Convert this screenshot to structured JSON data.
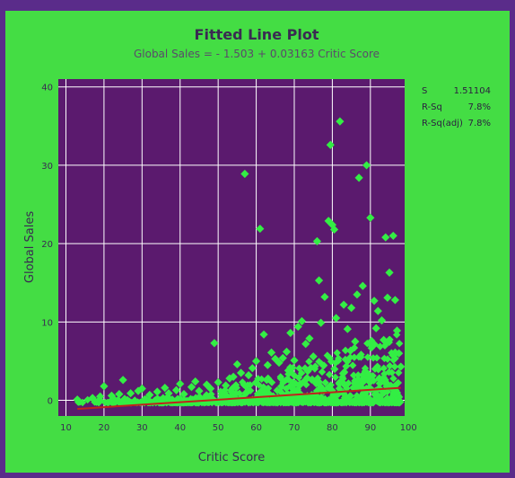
{
  "chart_data": {
    "type": "scatter",
    "title": "Fitted Line Plot",
    "subtitle": "Global Sales = - 1.503 + 0.03163 Critic Score",
    "xlabel": "Critic Score",
    "ylabel": "Global Sales",
    "xlim": [
      8,
      99
    ],
    "ylim": [
      -2,
      41
    ],
    "x_ticks": [
      10,
      20,
      30,
      40,
      50,
      60,
      70,
      80,
      90,
      100
    ],
    "y_ticks": [
      0,
      10,
      20,
      30,
      40
    ],
    "grid": true,
    "fit_line": {
      "intercept": -1.503,
      "slope": 0.03163,
      "x_range": [
        13,
        98
      ]
    },
    "stats": [
      {
        "label": "S",
        "value": "1.51104"
      },
      {
        "label": "R-Sq",
        "value": "7.8%"
      },
      {
        "label": "R-Sq(adj)",
        "value": "7.8%"
      }
    ],
    "colors": {
      "plot_background": "#5b1a6e",
      "figure_background": "#44dd44",
      "points": "#33ee44",
      "fit_line": "#c0221c",
      "gridlines": "#ffffff"
    },
    "series": [
      {
        "points": [
          [
            13,
            0.1
          ],
          [
            17,
            0.3
          ],
          [
            19,
            0.5
          ],
          [
            20,
            1.8
          ],
          [
            22,
            0.6
          ],
          [
            24,
            0.8
          ],
          [
            25,
            2.6
          ],
          [
            27,
            0.9
          ],
          [
            29,
            1.2
          ],
          [
            30,
            1.5
          ],
          [
            32,
            0.7
          ],
          [
            34,
            1.1
          ],
          [
            36,
            1.6
          ],
          [
            37,
            0.9
          ],
          [
            39,
            1.3
          ],
          [
            40,
            2.1
          ],
          [
            41,
            0.8
          ],
          [
            43,
            1.7
          ],
          [
            44,
            2.4
          ],
          [
            45,
            1.2
          ],
          [
            47,
            2.0
          ],
          [
            48,
            1.5
          ],
          [
            49,
            7.3
          ],
          [
            50,
            2.3
          ],
          [
            52,
            1.9
          ],
          [
            53,
            2.8
          ],
          [
            54,
            3.0
          ],
          [
            55,
            4.6
          ],
          [
            56,
            3.5
          ],
          [
            57,
            28.9
          ],
          [
            58,
            3.2
          ],
          [
            59,
            4.1
          ],
          [
            60,
            5.0
          ],
          [
            61,
            21.9
          ],
          [
            62,
            8.4
          ],
          [
            63,
            4.5
          ],
          [
            64,
            6.1
          ],
          [
            65,
            5.3
          ],
          [
            66,
            4.8
          ],
          [
            67,
            5.4
          ],
          [
            68,
            6.2
          ],
          [
            69,
            8.6
          ],
          [
            70,
            5.1
          ],
          [
            71,
            9.4
          ],
          [
            72,
            10.1
          ],
          [
            73,
            7.2
          ],
          [
            74,
            7.9
          ],
          [
            75,
            5.6
          ],
          [
            76,
            20.3
          ],
          [
            76.5,
            15.3
          ],
          [
            77,
            9.9
          ],
          [
            78,
            13.2
          ],
          [
            79,
            22.9
          ],
          [
            79.5,
            32.6
          ],
          [
            80,
            22.4
          ],
          [
            80.5,
            21.8
          ],
          [
            81,
            10.5
          ],
          [
            82,
            35.6
          ],
          [
            83,
            12.2
          ],
          [
            84,
            9.1
          ],
          [
            85,
            11.8
          ],
          [
            86,
            7.5
          ],
          [
            87,
            28.4
          ],
          [
            88,
            14.6
          ],
          [
            89,
            30.0
          ],
          [
            90,
            23.3
          ],
          [
            91,
            12.7
          ],
          [
            92,
            11.4
          ],
          [
            93,
            10.2
          ],
          [
            94,
            20.8
          ],
          [
            94.5,
            13.1
          ],
          [
            95,
            16.3
          ],
          [
            96,
            21.0
          ],
          [
            96.5,
            12.8
          ],
          [
            97,
            8.9
          ],
          [
            97.5,
            6.0
          ],
          [
            98,
            4.3
          ],
          [
            86.5,
            13.5
          ],
          [
            91.5,
            9.2
          ],
          [
            93.5,
            7.7
          ]
        ]
      }
    ]
  }
}
